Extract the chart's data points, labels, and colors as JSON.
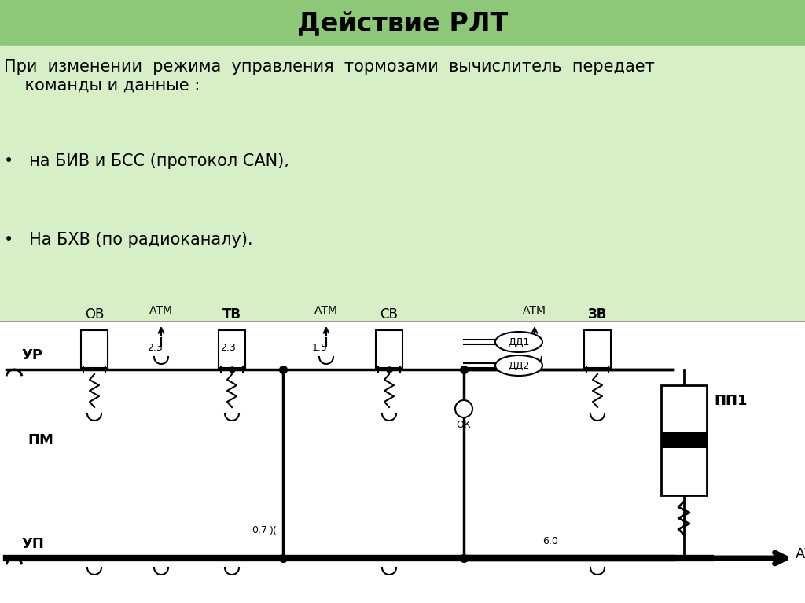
{
  "title": "Действие РЛТ",
  "title_bg": "#8DC878",
  "content_bg": "#D6EFC7",
  "white_bg": "#FFFFFF",
  "text_color": "#000000",
  "title_fontsize": 22,
  "body_fontsize": 15,
  "paragraph": "При  изменении  режима  управления  тормозами  вычислитель  передает\n    команды и данные :",
  "bullet1": "•   на БИВ и БСС (протокол CAN),",
  "bullet2": "•   На БХВ (по радиоканалу).",
  "diagram_labels": {
    "UR": "УР",
    "UP": "УП",
    "PM": "ПМ",
    "PP1": "ПП1",
    "OV": "ОВ",
    "TV": "ТВ",
    "SV": "СВ",
    "ZV": "ЗВ",
    "ATM1": "АТМ",
    "ATM2": "АТМ",
    "ATM3": "АТМ",
    "ATM_right": "АТМ",
    "DD1": "ДД1",
    "DD2": "ДД2",
    "OK": "ОК",
    "val_23a": "2.3",
    "val_23b": "2.3",
    "val_15": "1.5",
    "val_07": "0.7",
    "val_60": "6.0"
  }
}
